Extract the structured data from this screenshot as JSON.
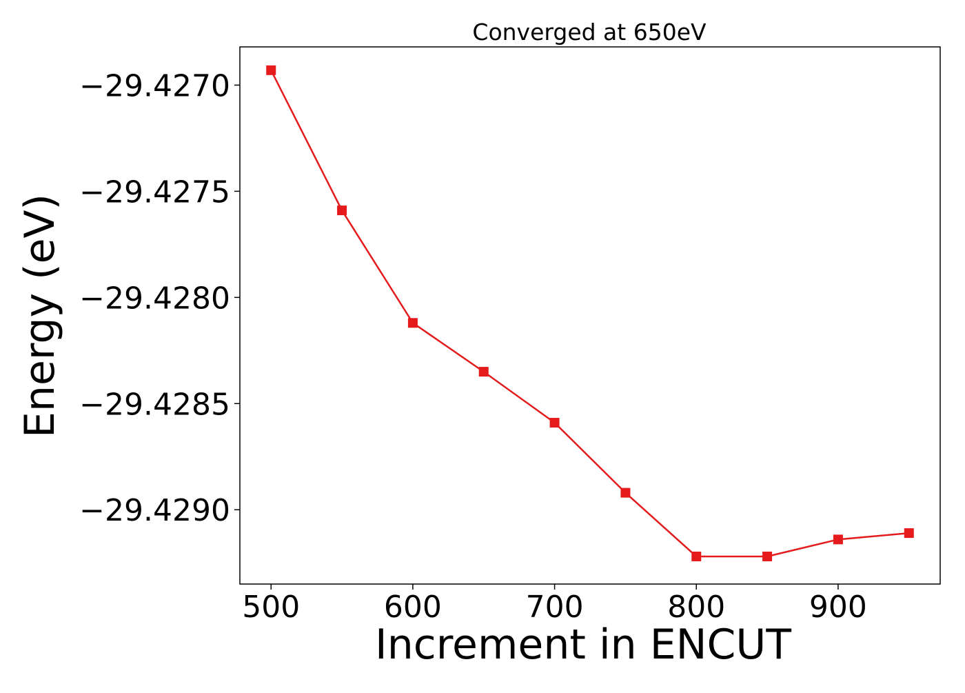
{
  "chart_data": {
    "type": "line",
    "title": "Converged at 650eV",
    "xlabel": "Increment in ENCUT",
    "ylabel": "Energy (eV)",
    "x": [
      500,
      550,
      600,
      650,
      700,
      750,
      800,
      850,
      900,
      950
    ],
    "series": [
      {
        "values": [
          -29.42693,
          -29.42759,
          -29.42812,
          -29.42835,
          -29.42859,
          -29.42892,
          -29.42922,
          -29.42922,
          -29.42914,
          -29.42911
        ],
        "color": "#e41a1c",
        "marker": "square"
      }
    ],
    "xlim": [
      478,
      972
    ],
    "ylim": [
      -29.42935,
      -29.42682
    ],
    "xticks": [
      500,
      600,
      700,
      800,
      900
    ],
    "xtick_labels": [
      "500",
      "600",
      "700",
      "800",
      "900"
    ],
    "yticks": [
      -29.427,
      -29.4275,
      -29.428,
      -29.4285,
      -29.429
    ],
    "ytick_labels": [
      "−29.4270",
      "−29.4275",
      "−29.4280",
      "−29.4285",
      "−29.4290"
    ],
    "grid": false,
    "legend": "none"
  }
}
